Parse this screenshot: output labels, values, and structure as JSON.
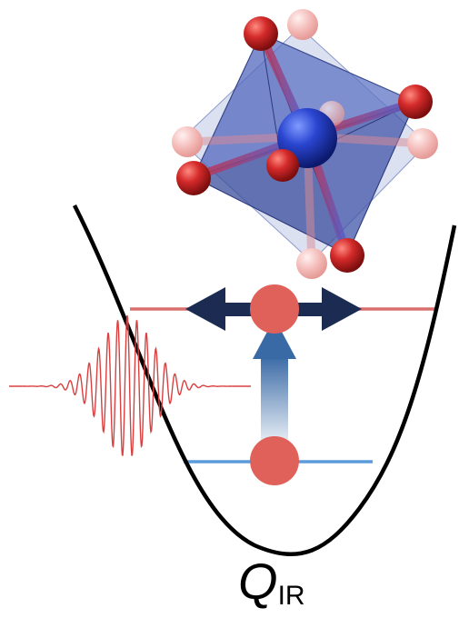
{
  "axis_label": {
    "symbol": "Q",
    "subscript": "IR"
  },
  "colors": {
    "potential": "#000000",
    "excited_level": "#d9706e",
    "ground_level": "#5b9bdc",
    "phonon_ball": "#e0605a",
    "arrow_dark": "#1c2b52",
    "arrow_up_top": "#3f6ea8",
    "arrow_up_bottom": "#dfe9f3",
    "pulse": "#d94040",
    "octahedron_face": "#4a5fb3",
    "oxygen": "#cc1d1d",
    "oxygen_faded": "#f2b6b4",
    "center_atom": "#1f3fc4"
  },
  "icons": [
    "octahedron-icon",
    "laser-pulse-icon",
    "phonon-ball-icon"
  ]
}
